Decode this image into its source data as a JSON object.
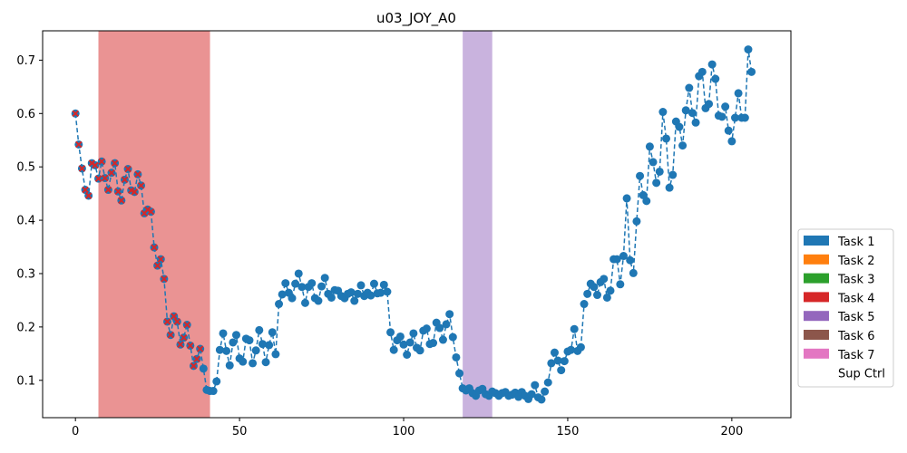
{
  "chart_data": {
    "type": "scatter",
    "title": "u03_JOY_A0",
    "xlabel": "",
    "ylabel": "",
    "xlim": [
      -10,
      218
    ],
    "ylim": [
      0.03,
      0.755
    ],
    "x_ticks": [
      0,
      50,
      100,
      150,
      200
    ],
    "y_ticks": [
      0.1,
      0.2,
      0.3,
      0.4,
      0.5,
      0.6,
      0.7
    ],
    "grid": false,
    "legend_position": "right-outside",
    "legend": [
      {
        "name": "Task 1",
        "color": "#1f77b4"
      },
      {
        "name": "Task 2",
        "color": "#ff7f0e"
      },
      {
        "name": "Task 3",
        "color": "#2ca02c"
      },
      {
        "name": "Task 4",
        "color": "#d62728"
      },
      {
        "name": "Task 5",
        "color": "#9467bd"
      },
      {
        "name": "Task 6",
        "color": "#8c564b"
      },
      {
        "name": "Task 7",
        "color": "#e377c2"
      },
      {
        "name": "Sup Ctrl",
        "color": "#ffffff"
      }
    ],
    "shaded_regions": [
      {
        "x0": 7,
        "x1": 41,
        "color": "#d62728",
        "opacity": 0.5
      },
      {
        "x0": 118,
        "x1": 127,
        "color": "#9467bd",
        "opacity": 0.5
      }
    ],
    "series": [
      {
        "line_style": "dashed",
        "marker_color": "#1f77b4",
        "x_start": 0,
        "values": [
          0.6,
          0.542,
          0.497,
          0.457,
          0.446,
          0.507,
          0.503,
          0.478,
          0.51,
          0.479,
          0.457,
          0.489,
          0.507,
          0.454,
          0.437,
          0.476,
          0.496,
          0.456,
          0.453,
          0.486,
          0.465,
          0.413,
          0.42,
          0.416,
          0.349,
          0.315,
          0.327,
          0.29,
          0.21,
          0.185,
          0.22,
          0.21,
          0.167,
          0.18,
          0.204,
          0.165,
          0.127,
          0.14,
          0.159,
          0.122,
          0.082,
          0.08,
          0.08,
          0.098,
          0.157,
          0.188,
          0.155,
          0.128,
          0.171,
          0.185,
          0.141,
          0.135,
          0.178,
          0.175,
          0.132,
          0.156,
          0.194,
          0.168,
          0.134,
          0.166,
          0.19,
          0.149,
          0.243,
          0.261,
          0.282,
          0.264,
          0.254,
          0.281,
          0.3,
          0.275,
          0.245,
          0.275,
          0.282,
          0.254,
          0.249,
          0.276,
          0.292,
          0.262,
          0.255,
          0.269,
          0.268,
          0.258,
          0.254,
          0.262,
          0.265,
          0.249,
          0.262,
          0.278,
          0.258,
          0.264,
          0.259,
          0.281,
          0.263,
          0.264,
          0.279,
          0.266,
          0.19,
          0.157,
          0.175,
          0.182,
          0.167,
          0.148,
          0.171,
          0.188,
          0.161,
          0.156,
          0.193,
          0.197,
          0.168,
          0.17,
          0.208,
          0.198,
          0.176,
          0.205,
          0.224,
          0.181,
          0.143,
          0.113,
          0.085,
          0.081,
          0.085,
          0.076,
          0.071,
          0.081,
          0.084,
          0.074,
          0.071,
          0.079,
          0.076,
          0.071,
          0.076,
          0.078,
          0.071,
          0.073,
          0.077,
          0.069,
          0.078,
          0.071,
          0.065,
          0.074,
          0.091,
          0.068,
          0.064,
          0.079,
          0.096,
          0.132,
          0.152,
          0.137,
          0.119,
          0.136,
          0.154,
          0.157,
          0.196,
          0.155,
          0.162,
          0.243,
          0.262,
          0.281,
          0.275,
          0.26,
          0.284,
          0.29,
          0.255,
          0.268,
          0.327,
          0.327,
          0.28,
          0.333,
          0.441,
          0.325,
          0.301,
          0.398,
          0.483,
          0.447,
          0.436,
          0.538,
          0.509,
          0.47,
          0.491,
          0.603,
          0.553,
          0.461,
          0.485,
          0.585,
          0.575,
          0.54,
          0.606,
          0.648,
          0.601,
          0.583,
          0.67,
          0.678,
          0.61,
          0.618,
          0.692,
          0.665,
          0.596,
          0.594,
          0.613,
          0.568,
          0.548,
          0.592,
          0.638,
          0.592,
          0.592,
          0.72,
          0.678
        ]
      },
      {
        "name": "",
        "overlay_marker": "x",
        "marker_color": "#d62728",
        "x_range": [
          0,
          38
        ]
      }
    ]
  }
}
